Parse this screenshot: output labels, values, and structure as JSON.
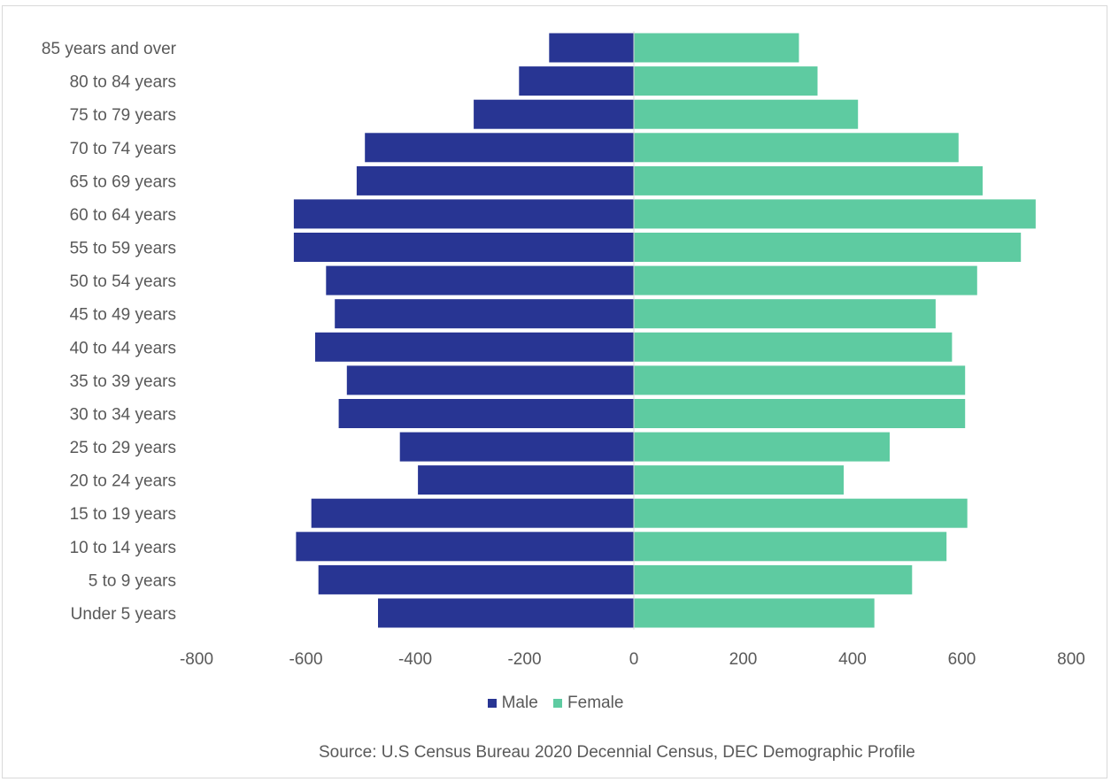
{
  "chart_data": {
    "type": "bar",
    "orientation": "horizontal",
    "categories": [
      "85 years and over",
      "80 to 84 years",
      "75 to 79 years",
      "70 to 74 years",
      "65 to 69 years",
      "60 to 64 years",
      "55 to 59 years",
      "50 to 54 years",
      "45 to 49 years",
      "40 to 44 years",
      "35 to 39 years",
      "30 to 34 years",
      "25 to 29 years",
      "20 to 24 years",
      "15 to 19 years",
      "10 to 14 years",
      "5 to 9 years",
      "Under 5 years"
    ],
    "series": [
      {
        "name": "Male",
        "color": "#283593",
        "values": [
          -155,
          -210,
          -293,
          -492,
          -507,
          -622,
          -622,
          -563,
          -547,
          -583,
          -525,
          -540,
          -428,
          -395,
          -590,
          -618,
          -577,
          -468
        ]
      },
      {
        "name": "Female",
        "color": "#5ecba1",
        "values": [
          302,
          336,
          410,
          594,
          638,
          735,
          708,
          628,
          552,
          582,
          606,
          606,
          468,
          384,
          610,
          572,
          509,
          440
        ]
      }
    ],
    "xlim": [
      -800,
      800
    ],
    "xticks": [
      -800,
      -600,
      -400,
      -200,
      0,
      200,
      400,
      600,
      800
    ],
    "xtick_labels": [
      "-800",
      "-600",
      "-400",
      "-200",
      "0",
      "200",
      "400",
      "600",
      "800"
    ],
    "grid": false,
    "legend_position": "bottom"
  },
  "legend": {
    "male_label": "Male",
    "female_label": "Female"
  },
  "source_text": "Source: U.S Census Bureau 2020 Decennial Census, DEC Demographic Profile"
}
